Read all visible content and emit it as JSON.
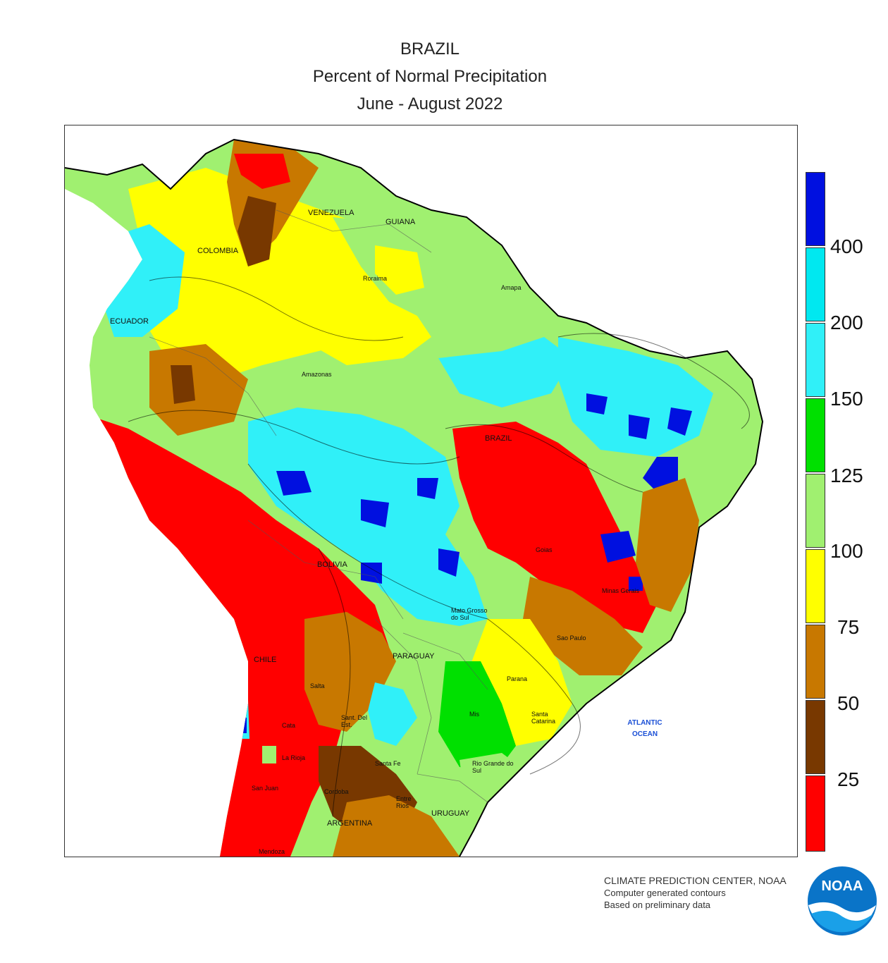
{
  "header": {
    "title": "BRAZIL",
    "subtitle": "Percent of Normal Precipitation",
    "period": "June - August 2022"
  },
  "map": {
    "country_labels": {
      "venezuela": "VENEZUELA",
      "guiana": "GUIANA",
      "colombia": "COLOMBIA",
      "ecuador": "ECUADOR",
      "brazil": "BRAZIL",
      "bolivia": "BOLIVIA",
      "chile": "CHILE",
      "paraguay": "PARAGUAY",
      "argentina": "ARGENTINA",
      "uruguay": "URUGUAY"
    },
    "state_labels": {
      "roraima": "Roraima",
      "amapa": "Amapa",
      "amazonas": "Amazonas",
      "goias": "Goias",
      "mato_grosso_do_sul": "Mato Grosso do Sul",
      "sao_paulo": "Sao Paulo",
      "parana": "Parana",
      "santa_catarina": "Santa Catarina",
      "rio_grande_do_sul": "Rio Grande do Sul",
      "minas_gerais": "Minas Gerais",
      "salta": "Salta",
      "cata": "Cata",
      "la_rioja": "La Rioja",
      "cordoba": "Cordoba",
      "santa_fe": "Santa Fe",
      "mendoza": "Mendoza",
      "san_juan": "San Juan",
      "entre_rios": "Entre Rios",
      "misiones": "Mis",
      "santiago_del_estero": "Sant. Del Est."
    },
    "ocean_label": "ATLANTIC OCEAN"
  },
  "legend": {
    "ticks": [
      "400",
      "200",
      "150",
      "125",
      "100",
      "75",
      "50",
      "25"
    ],
    "colors": [
      "#0010e0",
      "#00e8f0",
      "#30f0f8",
      "#00e000",
      "#a0f070",
      "#ffff00",
      "#c87800",
      "#783800",
      "#ff0000"
    ]
  },
  "credits": {
    "line1": "CLIMATE PREDICTION CENTER, NOAA",
    "line2": "Computer generated contours",
    "line3": "Based on preliminary data"
  },
  "logo": {
    "text": "NOAA",
    "icon": "noaa-logo-icon"
  }
}
